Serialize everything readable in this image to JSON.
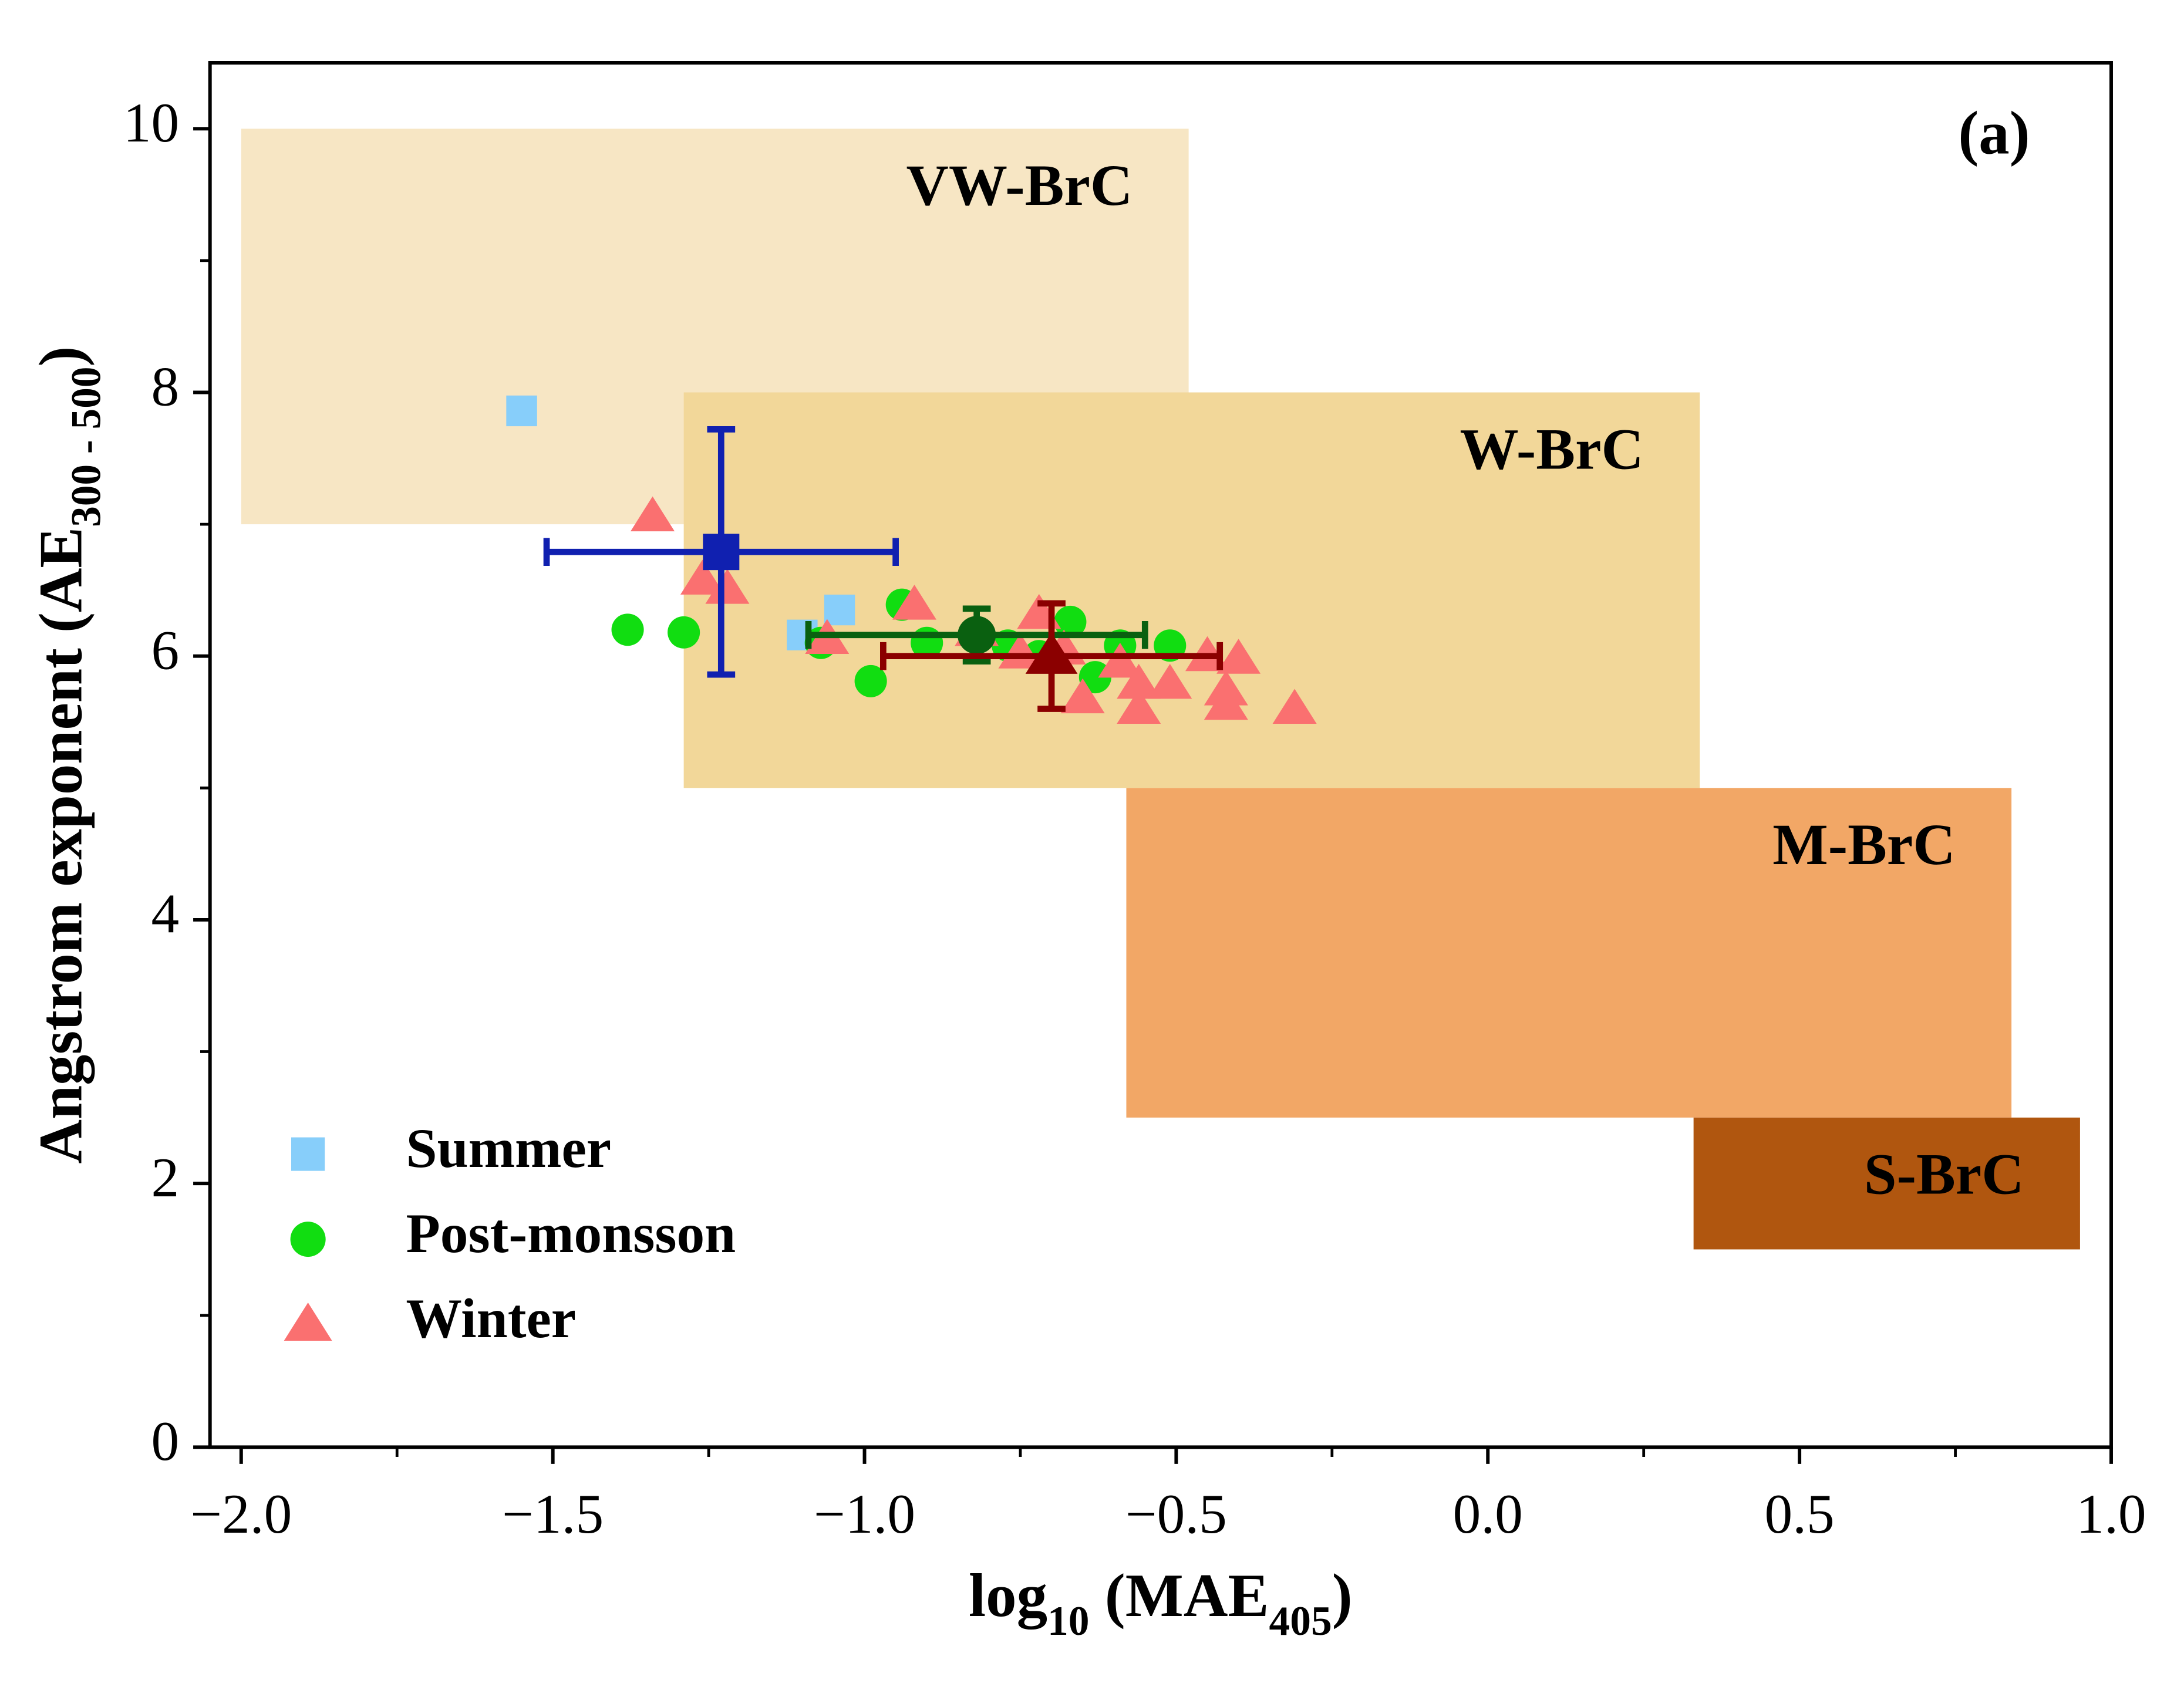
{
  "chart_data": {
    "type": "scatter",
    "annotation": "(a)",
    "xlabel_parts": [
      {
        "text": "log"
      },
      {
        "text": "10",
        "sub": true
      },
      {
        "text": " (MAE"
      },
      {
        "text": "405",
        "sub": true
      },
      {
        "text": ")"
      }
    ],
    "ylabel_parts": [
      {
        "text": "Angstrom exponent (AE"
      },
      {
        "text": "300 - 500",
        "sub": true
      },
      {
        "text": ")"
      }
    ],
    "xlim": [
      -2.05,
      1.0
    ],
    "ylim": [
      0,
      10.5
    ],
    "xticks": [
      {
        "value": -2.0,
        "label": "−2.0"
      },
      {
        "value": -1.5,
        "label": "−1.5"
      },
      {
        "value": -1.0,
        "label": "−1.0"
      },
      {
        "value": -0.5,
        "label": "−0.5"
      },
      {
        "value": 0.0,
        "label": "0.0"
      },
      0.5,
      {
        "value": 1.0,
        "label": "1.0"
      }
    ],
    "yticks": [
      0,
      2,
      4,
      6,
      8,
      10
    ],
    "minor_xticks": [
      -1.75,
      -1.25,
      -0.75,
      -0.25,
      0.25,
      0.75
    ],
    "minor_yticks": [
      1,
      3,
      5,
      7,
      9
    ],
    "legend": "lower left",
    "regions": [
      {
        "label": "VW-BrC",
        "x": [
          -2.0,
          -0.48
        ],
        "y": [
          7,
          10
        ],
        "color": "#f7e6c4"
      },
      {
        "label": "W-BrC",
        "x": [
          -1.29,
          0.34
        ],
        "y": [
          5,
          8
        ],
        "color": "#f2d799"
      },
      {
        "label": "M-BrC",
        "x": [
          -0.58,
          0.84
        ],
        "y": [
          2.5,
          5
        ],
        "color": "#f2a766"
      },
      {
        "label": "S-BrC",
        "x": [
          0.33,
          0.95
        ],
        "y": [
          1.5,
          2.5
        ],
        "color": "#b0560f"
      }
    ],
    "series": [
      {
        "name": "Summer",
        "marker": "square",
        "color": "#87cefa",
        "x": [
          -1.55,
          -1.1,
          -1.04
        ],
        "values": [
          7.86,
          6.16,
          6.35
        ],
        "mean": {
          "x": -1.23,
          "y": 6.79,
          "xerr": 0.28,
          "yerr": 0.93,
          "color": "#1020b0"
        }
      },
      {
        "name": "Post-monsson",
        "marker": "circle",
        "color": "#11dd11",
        "x": [
          -1.38,
          -1.29,
          -1.07,
          -0.99,
          -0.94,
          -0.9,
          -0.77,
          -0.72,
          -0.67,
          -0.63,
          -0.59,
          -0.51
        ],
        "values": [
          6.2,
          6.18,
          6.1,
          5.81,
          6.39,
          6.1,
          6.08,
          6.0,
          6.26,
          5.84,
          6.08,
          6.08
        ],
        "mean": {
          "x": -0.82,
          "y": 6.16,
          "xerr": 0.27,
          "yerr": 0.2,
          "color": "#0a6010"
        }
      },
      {
        "name": "Winter",
        "marker": "triangle",
        "color": "#fa7070",
        "x": [
          -1.34,
          -1.26,
          -1.22,
          -1.06,
          -0.92,
          -0.82,
          -0.75,
          -0.72,
          -0.68,
          -0.65,
          -0.59,
          -0.56,
          -0.56,
          -0.51,
          -0.45,
          -0.42,
          -0.42,
          -0.4,
          -0.31
        ],
        "values": [
          7.06,
          6.58,
          6.51,
          6.13,
          6.39,
          6.19,
          6.02,
          6.32,
          6.05,
          5.68,
          5.95,
          5.79,
          5.6,
          5.79,
          6.0,
          5.74,
          5.63,
          5.98,
          5.6
        ],
        "mean": {
          "x": -0.7,
          "y": 6.0,
          "xerr": 0.27,
          "yerr": 0.4,
          "color": "#8b0000"
        }
      }
    ]
  }
}
